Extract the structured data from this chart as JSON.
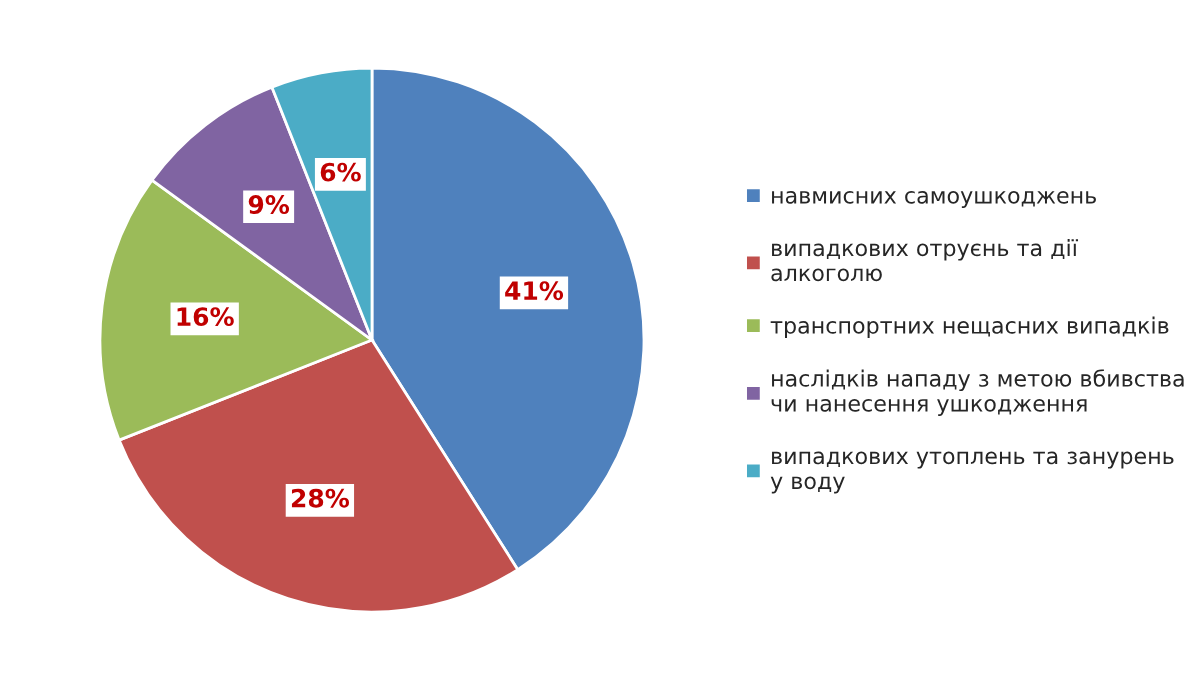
{
  "chart_data": {
    "type": "pie",
    "categories": [
      "навмисних самоушкоджень",
      "випадкових отруєнь та дії\nалкоголю",
      "транспортних нещасних випадків",
      "наслідків нападу з метою вбивства\nчи нанесення ушкодження",
      "випадкових утоплень та занурень\nу воду"
    ],
    "values": [
      41,
      28,
      16,
      9,
      6
    ],
    "colors": [
      "#4f81bd",
      "#c0504d",
      "#9bbb59",
      "#8064a2",
      "#4bacc6"
    ],
    "value_labels": [
      "41%",
      "28%",
      "16%",
      "9%",
      "6%"
    ],
    "legend": "right"
  }
}
